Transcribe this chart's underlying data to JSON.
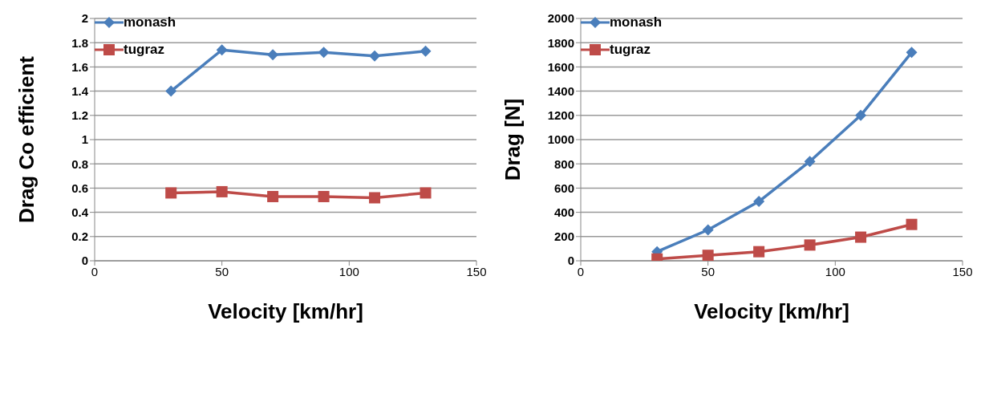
{
  "chart_data": [
    {
      "type": "line",
      "xlabel": "Velocity [km/hr]",
      "ylabel": "Drag  Co efficient",
      "x": [
        30,
        50,
        70,
        90,
        110,
        130
      ],
      "series": [
        {
          "name": "monash",
          "color": "#4a7ebb",
          "marker": "diamond",
          "values": [
            1.4,
            1.74,
            1.7,
            1.72,
            1.69,
            1.73
          ]
        },
        {
          "name": "tugraz",
          "color": "#be4b48",
          "marker": "square",
          "values": [
            0.56,
            0.57,
            0.53,
            0.53,
            0.52,
            0.56
          ]
        }
      ],
      "xlim": [
        0,
        150
      ],
      "xticks": [
        0,
        50,
        100,
        150
      ],
      "ylim": [
        0,
        2
      ],
      "yticks": [
        0,
        0.2,
        0.4,
        0.6,
        0.8,
        1,
        1.2,
        1.4,
        1.6,
        1.8,
        2
      ],
      "grid": "y",
      "legend": "top left"
    },
    {
      "type": "line",
      "xlabel": "Velocity [km/hr]",
      "ylabel": "Drag [N]",
      "x": [
        30,
        50,
        70,
        90,
        110,
        130
      ],
      "series": [
        {
          "name": "monash",
          "color": "#4a7ebb",
          "marker": "diamond",
          "values": [
            75,
            255,
            490,
            820,
            1200,
            1720
          ]
        },
        {
          "name": "tugraz",
          "color": "#be4b48",
          "marker": "square",
          "values": [
            15,
            45,
            75,
            130,
            195,
            300
          ]
        }
      ],
      "xlim": [
        0,
        150
      ],
      "xticks": [
        0,
        50,
        100,
        150
      ],
      "ylim": [
        0,
        2000
      ],
      "yticks": [
        0,
        200,
        400,
        600,
        800,
        1000,
        1200,
        1400,
        1600,
        1800,
        2000
      ],
      "grid": "y",
      "legend": "top left"
    }
  ]
}
